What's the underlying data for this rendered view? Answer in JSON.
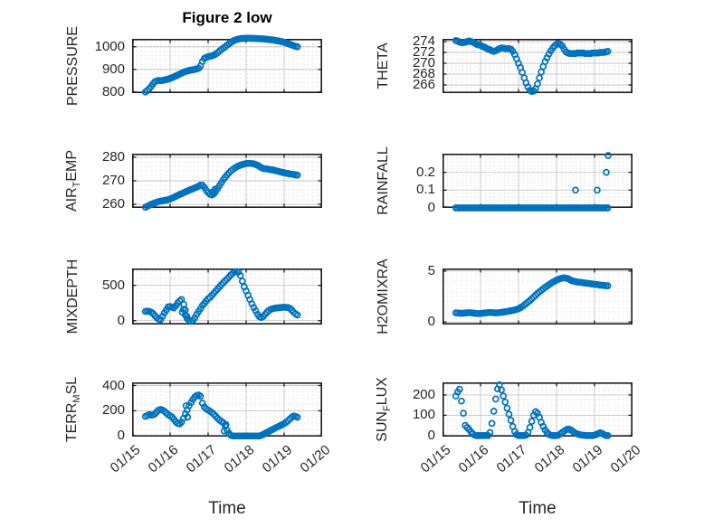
{
  "figure": {
    "title": "Figure 2 low",
    "xlabel": "Time"
  },
  "style": {
    "marker_color": "#0072BD",
    "axis_color": "#1c1c1c",
    "text_color": "#262626",
    "major_grid_color": "#c6c6c6",
    "minor_grid_color": "#d9d9d9",
    "background": "#ffffff"
  },
  "x_axis": {
    "unit": "days after 01/15",
    "xlim": [
      0,
      5
    ],
    "tick_positions": [
      0,
      1,
      2,
      3,
      4,
      5
    ],
    "tick_labels": [
      "01/15",
      "01/16",
      "01/17",
      "01/18",
      "01/19",
      "01/20"
    ],
    "minor_step": 0.125,
    "label": "Time"
  },
  "chart_data": [
    {
      "id": "pressure",
      "type": "scatter",
      "row": 0,
      "col": 0,
      "label_text": "PRESSURE",
      "ylabel_parts": [
        {
          "text": "PRESSURE"
        }
      ],
      "ylim": [
        795,
        1035
      ],
      "yticks": [
        800,
        900,
        1000
      ],
      "y_minor_step": 20,
      "t0": 0.35,
      "dt": 0.05,
      "y": [
        800,
        806,
        814,
        824,
        836,
        845,
        849,
        851,
        850,
        851,
        853,
        855,
        857,
        860,
        863,
        867,
        871,
        875,
        879,
        883,
        887,
        890,
        893,
        895,
        897,
        898,
        900,
        902,
        905,
        915,
        935,
        948,
        953,
        956,
        958,
        960,
        963,
        968,
        974,
        981,
        988,
        994,
        1000,
        1007,
        1013,
        1019,
        1025,
        1029,
        1032,
        1034,
        1036,
        1037,
        1037,
        1038,
        1038,
        1038,
        1037,
        1037,
        1037,
        1036,
        1036,
        1035,
        1035,
        1034,
        1033,
        1032,
        1031,
        1030,
        1029,
        1027,
        1026,
        1024,
        1022,
        1020,
        1017,
        1014,
        1011,
        1008,
        1005,
        1002,
        1000
      ],
      "extra_points": []
    },
    {
      "id": "theta",
      "type": "scatter",
      "row": 0,
      "col": 1,
      "label_text": "THETA",
      "ylabel_parts": [
        {
          "text": "THETA"
        }
      ],
      "ylim": [
        264.5,
        274.5
      ],
      "yticks": [
        266,
        268,
        270,
        272,
        274
      ],
      "y_minor_step": 0.5,
      "t0": 0.35,
      "dt": 0.05,
      "y": [
        274.2,
        274.1,
        273.9,
        273.8,
        273.8,
        273.9,
        274,
        274.1,
        274,
        273.9,
        273.7,
        273.5,
        273.4,
        273.3,
        273.1,
        273,
        272.8,
        272.6,
        272.5,
        272.3,
        272.2,
        272.3,
        272.5,
        272.7,
        272.8,
        272.8,
        272.7,
        272.7,
        272.7,
        272.6,
        272.2,
        271.6,
        270.8,
        270,
        269.2,
        268.3,
        267.3,
        266.4,
        265.6,
        265,
        264.8,
        264.9,
        265.3,
        266.2,
        267.3,
        268.4,
        269.4,
        270.3,
        271,
        271.7,
        272.3,
        272.8,
        273.2,
        273.5,
        273.6,
        273.5,
        273.2,
        272.6,
        272.1,
        271.9,
        271.8,
        271.8,
        271.8,
        271.8,
        271.9,
        271.9,
        271.9,
        271.9,
        271.8,
        271.8,
        271.8,
        271.8,
        271.9,
        271.9,
        271.9,
        271.9,
        272,
        272,
        272,
        272.1,
        272.2
      ],
      "extra_points": []
    },
    {
      "id": "airtemp",
      "type": "scatter",
      "row": 1,
      "col": 0,
      "label_text": "AIR_TEMP",
      "ylabel_parts": [
        {
          "text": "AIR"
        },
        {
          "text": "T",
          "sub": true
        },
        {
          "text": "EMP"
        }
      ],
      "ylim": [
        258.5,
        281.5
      ],
      "yticks": [
        260,
        270,
        280
      ],
      "y_minor_step": 2,
      "t0": 0.35,
      "dt": 0.05,
      "y": [
        258.8,
        259.2,
        259.6,
        260,
        260.3,
        260.6,
        260.9,
        261.2,
        261.4,
        261.5,
        261.7,
        261.8,
        262,
        262.3,
        262.6,
        263,
        263.4,
        263.8,
        264.2,
        264.5,
        264.9,
        265.3,
        265.6,
        266,
        266.3,
        266.6,
        267,
        267.3,
        267.7,
        268.2,
        268.1,
        267.2,
        266,
        265,
        264.3,
        264,
        264.5,
        265.5,
        266.8,
        268,
        269.2,
        270.5,
        271.5,
        272.5,
        273.4,
        274.2,
        274.8,
        275.4,
        275.9,
        276.3,
        276.6,
        276.9,
        277.1,
        277.3,
        277.4,
        277.4,
        277.3,
        277.2,
        276.9,
        276.6,
        276.1,
        275.6,
        275.2,
        275.1,
        275,
        274.9,
        274.7,
        274.6,
        274.4,
        274.2,
        274,
        273.8,
        273.6,
        273.4,
        273.2,
        273.1,
        272.9,
        272.8,
        272.7,
        272.5,
        272.4
      ],
      "extra_points": [
        [
          2.12,
          265.3
        ],
        [
          2.18,
          266.4
        ]
      ]
    },
    {
      "id": "rainfall",
      "type": "scatter",
      "row": 1,
      "col": 1,
      "label_text": "RAINFALL",
      "ylabel_parts": [
        {
          "text": "RAINFALL"
        }
      ],
      "ylim": [
        0,
        0.305
      ],
      "yticks": [
        0,
        0.1,
        0.2
      ],
      "y_minor_step": 0.02,
      "t0": 0.35,
      "dt": 0.05,
      "y": [
        0,
        0,
        0,
        0,
        0,
        0,
        0,
        0,
        0,
        0,
        0,
        0,
        0,
        0,
        0,
        0,
        0,
        0,
        0,
        0,
        0,
        0,
        0,
        0,
        0,
        0,
        0,
        0,
        0,
        0,
        0,
        0,
        0,
        0,
        0,
        0,
        0,
        0,
        0,
        0,
        0,
        0,
        0,
        0,
        0,
        0,
        0,
        0,
        0,
        0,
        0,
        0,
        0,
        0,
        0,
        0,
        0,
        0,
        0,
        0,
        0,
        0,
        0,
        0,
        0,
        0,
        0,
        0,
        0,
        0,
        0,
        0,
        0,
        0,
        0,
        0,
        0,
        0,
        0,
        0,
        0
      ],
      "extra_points": [
        [
          3.5,
          0.1
        ],
        [
          4.07,
          0.1
        ],
        [
          4.31,
          0.2
        ],
        [
          4.36,
          0.295
        ]
      ]
    },
    {
      "id": "mixdepth",
      "type": "scatter",
      "row": 2,
      "col": 0,
      "label_text": "MIXDEPTH",
      "ylabel_parts": [
        {
          "text": "MIXDEPTH"
        }
      ],
      "ylim": [
        -55,
        740
      ],
      "yticks": [
        0,
        500
      ],
      "y_minor_step": 100,
      "t0": 0.35,
      "dt": 0.05,
      "y": [
        130,
        135,
        132,
        120,
        100,
        70,
        40,
        20,
        15,
        60,
        110,
        150,
        195,
        200,
        190,
        180,
        210,
        250,
        280,
        300,
        160,
        80,
        30,
        5,
        -10,
        5,
        40,
        90,
        130,
        170,
        215,
        245,
        280,
        310,
        330,
        360,
        390,
        420,
        450,
        480,
        510,
        540,
        565,
        590,
        620,
        650,
        672,
        688,
        695,
        690,
        640,
        560,
        480,
        420,
        360,
        300,
        240,
        185,
        140,
        90,
        55,
        45,
        60,
        90,
        120,
        145,
        160,
        170,
        175,
        180,
        182,
        185,
        188,
        190,
        188,
        185,
        175,
        150,
        120,
        95,
        80
      ],
      "extra_points": [
        [
          1.32,
          120
        ],
        [
          1.36,
          230
        ],
        [
          1.4,
          150
        ],
        [
          1.44,
          60
        ]
      ]
    },
    {
      "id": "h2omixra",
      "type": "scatter",
      "row": 2,
      "col": 1,
      "label_text": "H2OMIXRA",
      "ylabel_parts": [
        {
          "text": "H2OMIXRA"
        }
      ],
      "ylim": [
        -0.25,
        5.25
      ],
      "yticks": [
        0,
        5
      ],
      "y_minor_step": 1,
      "t0": 0.35,
      "dt": 0.05,
      "y": [
        0.9,
        0.88,
        0.86,
        0.85,
        0.86,
        0.88,
        0.9,
        0.92,
        0.9,
        0.88,
        0.85,
        0.83,
        0.82,
        0.83,
        0.85,
        0.88,
        0.9,
        0.92,
        0.93,
        0.92,
        0.9,
        0.89,
        0.9,
        0.92,
        0.95,
        0.97,
        1,
        1.03,
        1.06,
        1.1,
        1.14,
        1.18,
        1.24,
        1.3,
        1.4,
        1.52,
        1.65,
        1.8,
        1.95,
        2.1,
        2.28,
        2.45,
        2.62,
        2.8,
        2.95,
        3.1,
        3.25,
        3.4,
        3.52,
        3.65,
        3.78,
        3.9,
        4,
        4.1,
        4.18,
        4.25,
        4.3,
        4.33,
        4.3,
        4.25,
        4.15,
        4.05,
        4,
        3.95,
        3.92,
        3.9,
        3.88,
        3.85,
        3.82,
        3.8,
        3.78,
        3.75,
        3.72,
        3.7,
        3.68,
        3.65,
        3.62,
        3.6,
        3.58,
        3.55,
        3.55
      ],
      "extra_points": []
    },
    {
      "id": "terrmsl",
      "type": "scatter",
      "row": 3,
      "col": 0,
      "label_text": "TERR_MSL",
      "ylabel_parts": [
        {
          "text": "TERR"
        },
        {
          "text": "M",
          "sub": true
        },
        {
          "text": "SL"
        }
      ],
      "ylim": [
        -5,
        425
      ],
      "yticks": [
        0,
        200,
        400
      ],
      "y_minor_step": 50,
      "t0": 0.35,
      "dt": 0.05,
      "y": [
        155,
        162,
        170,
        165,
        168,
        175,
        192,
        205,
        210,
        205,
        196,
        182,
        168,
        160,
        150,
        132,
        112,
        100,
        95,
        110,
        140,
        175,
        205,
        240,
        265,
        290,
        310,
        320,
        325,
        315,
        260,
        230,
        215,
        205,
        196,
        186,
        172,
        156,
        140,
        126,
        115,
        105,
        80,
        45,
        20,
        5,
        0,
        0,
        0,
        0,
        0,
        0,
        0,
        0,
        0,
        0,
        0,
        0,
        0,
        0,
        0,
        5,
        12,
        20,
        28,
        36,
        44,
        52,
        60,
        68,
        75,
        82,
        90,
        98,
        108,
        120,
        135,
        148,
        158,
        155,
        148
      ],
      "extra_points": [
        [
          1.42,
          240
        ],
        [
          1.46,
          150
        ],
        [
          2.42,
          40
        ],
        [
          2.47,
          90
        ]
      ]
    },
    {
      "id": "sunflux",
      "type": "scatter",
      "row": 3,
      "col": 1,
      "label_text": "SUN_FLUX",
      "ylabel_parts": [
        {
          "text": "SUN"
        },
        {
          "text": "F",
          "sub": true
        },
        {
          "text": "LUX"
        }
      ],
      "ylim": [
        -5,
        262
      ],
      "yticks": [
        0,
        100,
        200
      ],
      "y_minor_step": 25,
      "t0": 0.35,
      "dt": 0.05,
      "y": [
        195,
        215,
        228,
        170,
        110,
        50,
        40,
        30,
        18,
        8,
        2,
        0,
        0,
        0,
        0,
        0,
        0,
        0,
        15,
        60,
        120,
        180,
        230,
        250,
        225,
        195,
        165,
        135,
        105,
        75,
        45,
        20,
        5,
        0,
        0,
        0,
        0,
        2,
        15,
        40,
        70,
        100,
        118,
        110,
        90,
        65,
        45,
        28,
        15,
        6,
        2,
        0,
        0,
        0,
        2,
        8,
        15,
        22,
        28,
        32,
        30,
        25,
        18,
        12,
        8,
        5,
        3,
        2,
        1,
        0,
        0,
        0,
        0,
        2,
        5,
        10,
        14,
        10,
        5,
        0,
        0
      ],
      "extra_points": []
    }
  ]
}
